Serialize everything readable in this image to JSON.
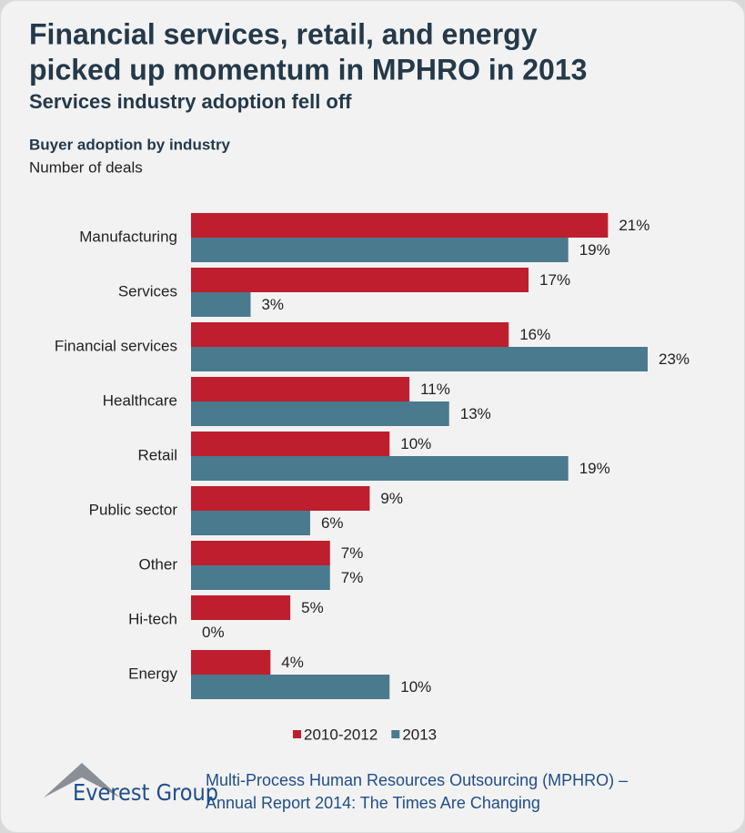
{
  "chart_data": {
    "type": "bar",
    "title": [
      "Financial services, retail, and energy",
      "picked up momentum in MPHRO in 2013"
    ],
    "subtitle": "Services industry adoption fell off",
    "chart_title": "Buyer adoption by industry",
    "axis_label": "Number of deals",
    "orientation": "horizontal",
    "categories": [
      "Manufacturing",
      "Services",
      "Financial services",
      "Healthcare",
      "Retail",
      "Public sector",
      "Other",
      "Hi-tech",
      "Energy"
    ],
    "series": [
      {
        "name": "2010-2012",
        "color": "#be1e2d",
        "values": [
          21,
          17,
          16,
          11,
          10,
          9,
          7,
          5,
          4
        ],
        "value_labels": [
          "21%",
          "17%",
          "16%",
          "11%",
          "10%",
          "9%",
          "7%",
          "5%",
          "4%"
        ]
      },
      {
        "name": "2013",
        "color": "#4a7a8e",
        "values": [
          19,
          3,
          23,
          13,
          19,
          6,
          7,
          0,
          10
        ],
        "value_labels": [
          "19%",
          "3%",
          "23%",
          "13%",
          "19%",
          "6%",
          "7%",
          "0%",
          "10%"
        ]
      }
    ],
    "legend": "bottom"
  },
  "footer": {
    "logo": "Everest Group",
    "source": [
      "Multi-Process Human Resources Outsourcing (MPHRO) –",
      "Annual Report 2014: The Times Are Changing"
    ]
  }
}
